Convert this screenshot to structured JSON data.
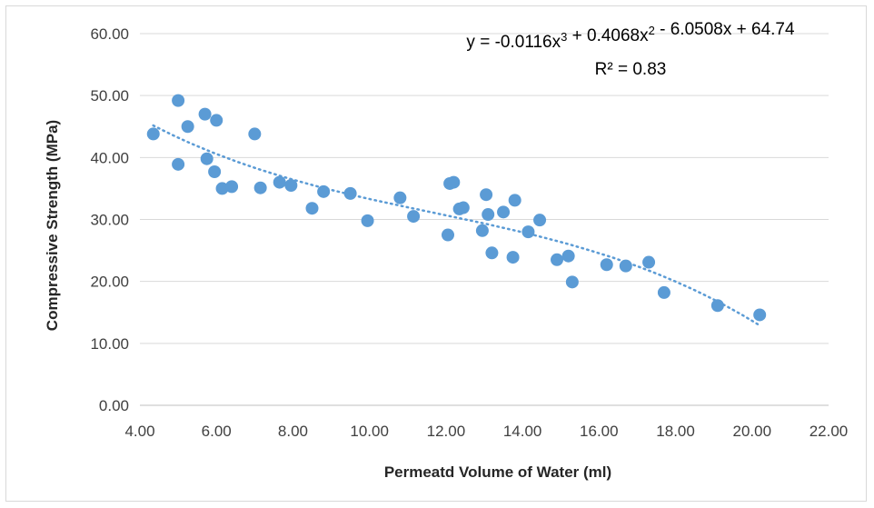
{
  "chart_data": {
    "type": "scatter",
    "xlabel": "Permeatd Volume of Water (ml)",
    "ylabel": "Compressive Strength (MPa)",
    "xlim": [
      4,
      22
    ],
    "ylim": [
      0,
      60
    ],
    "x_ticks": [
      "4.00",
      "6.00",
      "8.00",
      "10.00",
      "12.00",
      "14.00",
      "16.00",
      "18.00",
      "20.00",
      "22.00"
    ],
    "y_ticks": [
      "0.00",
      "10.00",
      "20.00",
      "30.00",
      "40.00",
      "50.00",
      "60.00"
    ],
    "grid": true,
    "point_color": "#5b9bd5",
    "trendline": {
      "type": "polynomial",
      "coefficients": [
        -0.0116,
        0.4068,
        -6.0508,
        64.74
      ],
      "x_range": [
        4.35,
        20.15
      ],
      "style": "dotted",
      "color": "#5b9bd5",
      "equation": "y = -0.0116x³ + 0.4068x² - 6.0508x + 64.74",
      "r_squared": "R² = 0.83"
    },
    "points": [
      [
        4.35,
        43.8
      ],
      [
        5.0,
        49.2
      ],
      [
        5.0,
        38.9
      ],
      [
        5.25,
        45.0
      ],
      [
        5.7,
        47.0
      ],
      [
        5.75,
        39.8
      ],
      [
        5.95,
        37.7
      ],
      [
        6.0,
        46.0
      ],
      [
        6.15,
        35.0
      ],
      [
        6.4,
        35.3
      ],
      [
        7.0,
        43.8
      ],
      [
        7.15,
        35.1
      ],
      [
        7.65,
        36.0
      ],
      [
        7.95,
        35.5
      ],
      [
        8.5,
        31.8
      ],
      [
        8.8,
        34.5
      ],
      [
        9.5,
        34.2
      ],
      [
        9.95,
        29.8
      ],
      [
        10.8,
        33.5
      ],
      [
        11.15,
        30.5
      ],
      [
        12.05,
        27.5
      ],
      [
        12.1,
        35.8
      ],
      [
        12.2,
        36.0
      ],
      [
        12.35,
        31.7
      ],
      [
        12.45,
        31.9
      ],
      [
        12.95,
        28.2
      ],
      [
        13.05,
        34.0
      ],
      [
        13.1,
        30.8
      ],
      [
        13.2,
        24.6
      ],
      [
        13.5,
        31.2
      ],
      [
        13.75,
        23.9
      ],
      [
        13.8,
        33.1
      ],
      [
        14.15,
        28.0
      ],
      [
        14.45,
        29.9
      ],
      [
        14.9,
        23.5
      ],
      [
        15.2,
        24.1
      ],
      [
        15.3,
        19.9
      ],
      [
        16.2,
        22.7
      ],
      [
        16.7,
        22.5
      ],
      [
        17.3,
        23.1
      ],
      [
        17.7,
        18.2
      ],
      [
        19.1,
        16.1
      ],
      [
        20.2,
        14.6
      ]
    ]
  }
}
